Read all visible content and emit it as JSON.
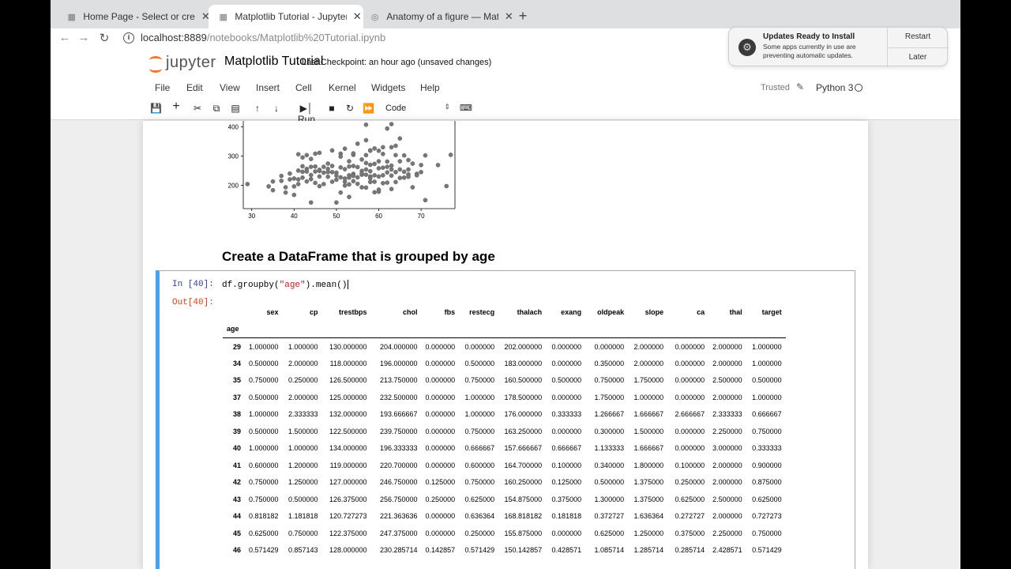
{
  "browser": {
    "tabs": [
      {
        "title": "Home Page - Select or create",
        "active": false
      },
      {
        "title": "Matplotlib Tutorial - Jupyter N",
        "active": true
      },
      {
        "title": "Anatomy of a figure — Matplot",
        "active": false
      }
    ],
    "url_host": "localhost:8889",
    "url_path": "/notebooks/Matplotlib%20Tutorial.ipynb"
  },
  "notification": {
    "title": "Updates Ready to Install",
    "body": "Some apps currently in use are preventing automatic updates.",
    "restart": "Restart",
    "later": "Later"
  },
  "jupyter": {
    "logo": "jupyter",
    "notebook_name": "Matplotlib Tutorial",
    "checkpoint": "Last Checkpoint: an hour ago  (unsaved changes)",
    "menu": [
      "File",
      "Edit",
      "View",
      "Insert",
      "Cell",
      "Kernel",
      "Widgets",
      "Help"
    ],
    "trusted": "Trusted",
    "kernel": "Python 3",
    "run_label": "Run",
    "cell_type": "Code"
  },
  "notebook": {
    "heading": "Create a DataFrame that is grouped by age",
    "in_prompt": "In [40]:",
    "code_pre": "df.groupby(",
    "code_str": "\"age\"",
    "code_post": ").mean()",
    "out_prompt": "Out[40]:"
  },
  "table": {
    "columns": [
      "sex",
      "cp",
      "trestbps",
      "chol",
      "fbs",
      "restecg",
      "thalach",
      "exang",
      "oldpeak",
      "slope",
      "ca",
      "thal",
      "target"
    ],
    "index_name": "age",
    "rows": [
      [
        "29",
        "1.000000",
        "1.000000",
        "130.000000",
        "204.000000",
        "0.000000",
        "0.000000",
        "202.000000",
        "0.000000",
        "0.000000",
        "2.000000",
        "0.000000",
        "2.000000",
        "1.000000"
      ],
      [
        "34",
        "0.500000",
        "2.000000",
        "118.000000",
        "196.000000",
        "0.000000",
        "0.500000",
        "183.000000",
        "0.000000",
        "0.350000",
        "2.000000",
        "0.000000",
        "2.000000",
        "1.000000"
      ],
      [
        "35",
        "0.750000",
        "0.250000",
        "126.500000",
        "213.750000",
        "0.000000",
        "0.750000",
        "160.500000",
        "0.500000",
        "0.750000",
        "1.750000",
        "0.000000",
        "2.500000",
        "0.500000"
      ],
      [
        "37",
        "0.500000",
        "2.000000",
        "125.000000",
        "232.500000",
        "0.000000",
        "1.000000",
        "178.500000",
        "0.000000",
        "1.750000",
        "1.000000",
        "0.000000",
        "2.000000",
        "1.000000"
      ],
      [
        "38",
        "1.000000",
        "2.333333",
        "132.000000",
        "193.666667",
        "0.000000",
        "1.000000",
        "176.000000",
        "0.333333",
        "1.266667",
        "1.666667",
        "2.666667",
        "2.333333",
        "0.666667"
      ],
      [
        "39",
        "0.500000",
        "1.500000",
        "122.500000",
        "239.750000",
        "0.000000",
        "0.750000",
        "163.250000",
        "0.000000",
        "0.300000",
        "1.500000",
        "0.000000",
        "2.250000",
        "0.750000"
      ],
      [
        "40",
        "1.000000",
        "1.000000",
        "134.000000",
        "196.333333",
        "0.000000",
        "0.666667",
        "157.666667",
        "0.666667",
        "1.133333",
        "1.666667",
        "0.000000",
        "3.000000",
        "0.333333"
      ],
      [
        "41",
        "0.600000",
        "1.200000",
        "119.000000",
        "220.700000",
        "0.000000",
        "0.600000",
        "164.700000",
        "0.100000",
        "0.340000",
        "1.800000",
        "0.100000",
        "2.000000",
        "0.900000"
      ],
      [
        "42",
        "0.750000",
        "1.250000",
        "127.000000",
        "246.750000",
        "0.125000",
        "0.750000",
        "160.250000",
        "0.125000",
        "0.500000",
        "1.375000",
        "0.250000",
        "2.000000",
        "0.875000"
      ],
      [
        "43",
        "0.750000",
        "0.500000",
        "126.375000",
        "256.750000",
        "0.250000",
        "0.625000",
        "154.875000",
        "0.375000",
        "1.300000",
        "1.375000",
        "0.625000",
        "2.500000",
        "0.625000"
      ],
      [
        "44",
        "0.818182",
        "1.181818",
        "120.727273",
        "221.363636",
        "0.000000",
        "0.636364",
        "168.818182",
        "0.181818",
        "0.372727",
        "1.636364",
        "0.272727",
        "2.000000",
        "0.727273"
      ],
      [
        "45",
        "0.625000",
        "0.750000",
        "122.375000",
        "247.375000",
        "0.000000",
        "0.250000",
        "155.875000",
        "0.000000",
        "0.625000",
        "1.250000",
        "0.375000",
        "2.250000",
        "0.750000"
      ],
      [
        "46",
        "0.571429",
        "0.857143",
        "128.000000",
        "230.285714",
        "0.142857",
        "0.571429",
        "150.142857",
        "0.428571",
        "1.085714",
        "1.285714",
        "0.285714",
        "2.428571",
        "0.571429"
      ]
    ]
  },
  "chart_data": {
    "type": "scatter",
    "title": "",
    "xlabel": "",
    "ylabel": "",
    "xticks": [
      30,
      40,
      50,
      60,
      70
    ],
    "yticks": [
      200,
      300,
      400
    ],
    "xlim": [
      28,
      78
    ],
    "ylim": [
      120,
      420
    ],
    "points": [
      [
        29,
        204
      ],
      [
        34,
        196
      ],
      [
        35,
        213
      ],
      [
        35,
        183
      ],
      [
        37,
        232
      ],
      [
        37,
        215
      ],
      [
        38,
        193
      ],
      [
        38,
        175
      ],
      [
        39,
        240
      ],
      [
        39,
        220
      ],
      [
        40,
        196
      ],
      [
        40,
        167
      ],
      [
        40,
        223
      ],
      [
        41,
        220
      ],
      [
        41,
        250
      ],
      [
        41,
        204
      ],
      [
        41,
        306
      ],
      [
        42,
        246
      ],
      [
        42,
        226
      ],
      [
        42,
        265
      ],
      [
        42,
        295
      ],
      [
        43,
        256
      ],
      [
        43,
        213
      ],
      [
        43,
        247
      ],
      [
        43,
        303
      ],
      [
        44,
        221
      ],
      [
        44,
        263
      ],
      [
        44,
        235
      ],
      [
        44,
        290
      ],
      [
        45,
        247
      ],
      [
        45,
        208
      ],
      [
        45,
        264
      ],
      [
        45,
        308
      ],
      [
        46,
        230
      ],
      [
        46,
        249
      ],
      [
        46,
        253
      ],
      [
        46,
        311
      ],
      [
        47,
        243
      ],
      [
        47,
        263
      ],
      [
        47,
        204
      ],
      [
        48,
        229
      ],
      [
        48,
        256
      ],
      [
        48,
        274
      ],
      [
        48,
        245
      ],
      [
        49,
        266
      ],
      [
        49,
        212
      ],
      [
        49,
        245
      ],
      [
        50,
        219
      ],
      [
        50,
        243
      ],
      [
        50,
        233
      ],
      [
        51,
        227
      ],
      [
        51,
        261
      ],
      [
        51,
        308
      ],
      [
        51,
        298
      ],
      [
        51,
        175
      ],
      [
        52,
        212
      ],
      [
        52,
        199
      ],
      [
        52,
        255
      ],
      [
        52,
        325
      ],
      [
        52,
        223
      ],
      [
        53,
        234
      ],
      [
        53,
        226
      ],
      [
        53,
        282
      ],
      [
        53,
        203
      ],
      [
        53,
        264
      ],
      [
        54,
        239
      ],
      [
        54,
        214
      ],
      [
        54,
        304
      ],
      [
        54,
        266
      ],
      [
        54,
        309
      ],
      [
        54,
        232
      ],
      [
        55,
        227
      ],
      [
        55,
        342
      ],
      [
        55,
        205
      ],
      [
        55,
        262
      ],
      [
        56,
        236
      ],
      [
        56,
        249
      ],
      [
        56,
        288
      ],
      [
        56,
        240
      ],
      [
        56,
        193
      ],
      [
        57,
        254
      ],
      [
        57,
        236
      ],
      [
        57,
        354
      ],
      [
        57,
        192
      ],
      [
        57,
        276
      ],
      [
        57,
        303
      ],
      [
        58,
        230
      ],
      [
        58,
        270
      ],
      [
        58,
        248
      ],
      [
        58,
        211
      ],
      [
        58,
        319
      ],
      [
        58,
        224
      ],
      [
        59,
        212
      ],
      [
        59,
        234
      ],
      [
        59,
        273
      ],
      [
        59,
        326
      ],
      [
        59,
        176
      ],
      [
        60,
        258
      ],
      [
        60,
        282
      ],
      [
        60,
        318
      ],
      [
        60,
        230
      ],
      [
        60,
        185
      ],
      [
        61,
        234
      ],
      [
        61,
        330
      ],
      [
        61,
        307
      ],
      [
        61,
        207
      ],
      [
        61,
        260
      ],
      [
        62,
        263
      ],
      [
        62,
        244
      ],
      [
        62,
        281
      ],
      [
        62,
        394
      ],
      [
        62,
        209
      ],
      [
        63,
        267
      ],
      [
        63,
        233
      ],
      [
        63,
        330
      ],
      [
        63,
        254
      ],
      [
        63,
        187
      ],
      [
        64,
        245
      ],
      [
        64,
        303
      ],
      [
        64,
        211
      ],
      [
        64,
        335
      ],
      [
        65,
        225
      ],
      [
        65,
        254
      ],
      [
        65,
        282
      ],
      [
        65,
        360
      ],
      [
        66,
        226
      ],
      [
        66,
        302
      ],
      [
        66,
        246
      ],
      [
        67,
        237
      ],
      [
        67,
        286
      ],
      [
        67,
        229
      ],
      [
        67,
        254
      ],
      [
        68,
        274
      ],
      [
        68,
        193
      ],
      [
        69,
        239
      ],
      [
        69,
        234
      ],
      [
        70,
        245
      ],
      [
        70,
        269
      ],
      [
        71,
        149
      ],
      [
        71,
        302
      ],
      [
        74,
        269
      ],
      [
        76,
        197
      ],
      [
        77,
        304
      ],
      [
        53,
        160
      ],
      [
        50,
        141
      ],
      [
        57,
        407
      ],
      [
        44,
        141
      ],
      [
        49,
        319
      ],
      [
        63,
        409
      ],
      [
        60,
        178
      ],
      [
        46,
        197
      ],
      [
        58,
        318
      ]
    ]
  }
}
